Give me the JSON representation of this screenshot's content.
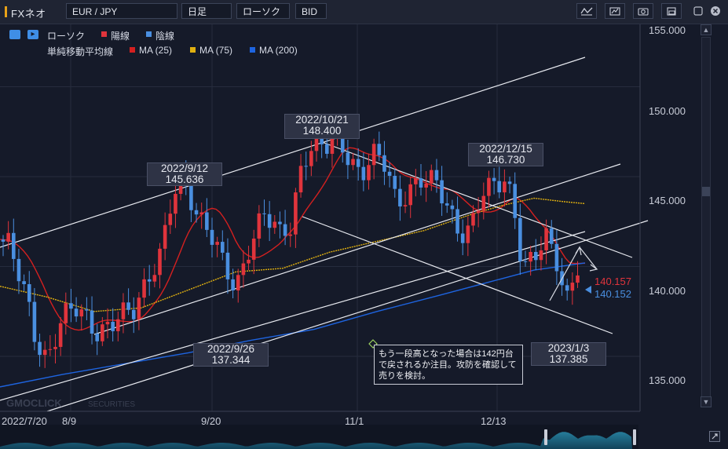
{
  "app": {
    "title": "FXネオ"
  },
  "toolbar": {
    "symbol": "EUR / JPY",
    "timeframe": "日足",
    "chart_type": "ローソク",
    "price_type": "BID"
  },
  "legend": {
    "candle_label": "ローソク",
    "up_label": "陽線",
    "down_label": "陰線",
    "ma_label": "単純移動平均線",
    "ma25": "MA (25)",
    "ma75": "MA (75)",
    "ma200": "MA (200)",
    "colors": {
      "up": "#e0343c",
      "down": "#4a8fe0",
      "ma25": "#d42020",
      "ma75": "#e0b010",
      "ma200": "#1e64e0"
    }
  },
  "y_axis": {
    "ticks": [
      "150.000",
      "145.000",
      "140.000",
      "135.000"
    ],
    "top_partial": "155.000"
  },
  "x_axis": {
    "ticks": [
      "2022/7/20",
      "8/9",
      "9/20",
      "11/1",
      "12/13"
    ]
  },
  "current_price": {
    "ask": "140.157",
    "bid": "140.152"
  },
  "annotations": {
    "high1": {
      "date": "2022/10/21",
      "price": "148.400"
    },
    "high2": {
      "date": "2022/9/12",
      "price": "145.636"
    },
    "high3": {
      "date": "2022/12/15",
      "price": "146.730"
    },
    "low1": {
      "date": "2022/9/26",
      "price": "137.344"
    },
    "low2": {
      "date": "2023/1/3",
      "price": "137.385"
    },
    "note": "もう一段高となった場合は142円台で戻されるか注目。攻防を確認して売りを検討。"
  },
  "watermark": {
    "brand": "GMOCLICK",
    "sub": "SECURITIES"
  },
  "chart_data": {
    "type": "candlestick",
    "x_labels": [
      "2022/7/20",
      "8/9",
      "9/20",
      "11/1",
      "12/13"
    ],
    "ylim": [
      133.5,
      155.0
    ],
    "y_ticks": [
      135,
      140,
      145,
      150
    ],
    "series": [
      {
        "name": "MA (25)",
        "color": "#d42020"
      },
      {
        "name": "MA (75)",
        "color": "#e0b010"
      },
      {
        "name": "MA (200)",
        "color": "#1e64e0"
      }
    ],
    "key_points": [
      {
        "label": "2022/9/12",
        "value": 145.636
      },
      {
        "label": "2022/9/26",
        "value": 137.344
      },
      {
        "label": "2022/10/21",
        "value": 148.4
      },
      {
        "label": "2022/12/15",
        "value": 146.73
      },
      {
        "label": "2023/1/3",
        "value": 137.385
      }
    ],
    "last_ask": 140.157,
    "last_bid": 140.152
  }
}
